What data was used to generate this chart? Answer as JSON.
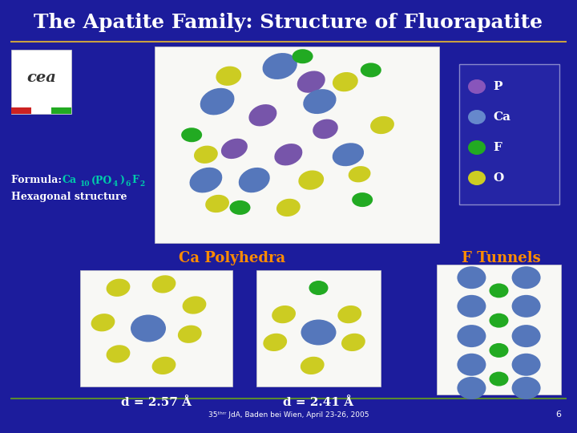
{
  "bg_color": "#1c1c9c",
  "title": "The Apatite Family: Structure of Fluorapatite",
  "title_color": "#ffffff",
  "title_fontsize": 18,
  "separator_color": "#c8a040",
  "formula_color": "#00ccaa",
  "formula_label_color": "#ffffff",
  "hexagonal_color": "#ffffff",
  "ca_polyhedra_text": "Ca Polyhedra",
  "ca_polyhedra_color": "#ff8c00",
  "f_tunnels_text": "F Tunnels",
  "f_tunnels_color": "#ff8c00",
  "d1_text": "d = 2.57 Å",
  "d2_text": "d = 2.41 Å",
  "d_color": "#ffffff",
  "d_fontsize": 11,
  "legend_items": [
    "P",
    "Ca",
    "F",
    "O"
  ],
  "legend_colors": [
    "#8855bb",
    "#6688cc",
    "#22aa22",
    "#cccc22"
  ],
  "legend_text_color": "#ffffff",
  "footer_text": "35ᵗʰʳʳ JdA, Baden bei Wien, April 23-26, 2005",
  "footer_page": "6",
  "footer_color": "#ffffff",
  "footer_sep_color": "#5a8a30",
  "panel_bg": "#f8f8f5",
  "atom_purple": "#7755aa",
  "atom_blue": "#5577bb",
  "atom_green": "#22aa22",
  "atom_yellow": "#cccc22"
}
